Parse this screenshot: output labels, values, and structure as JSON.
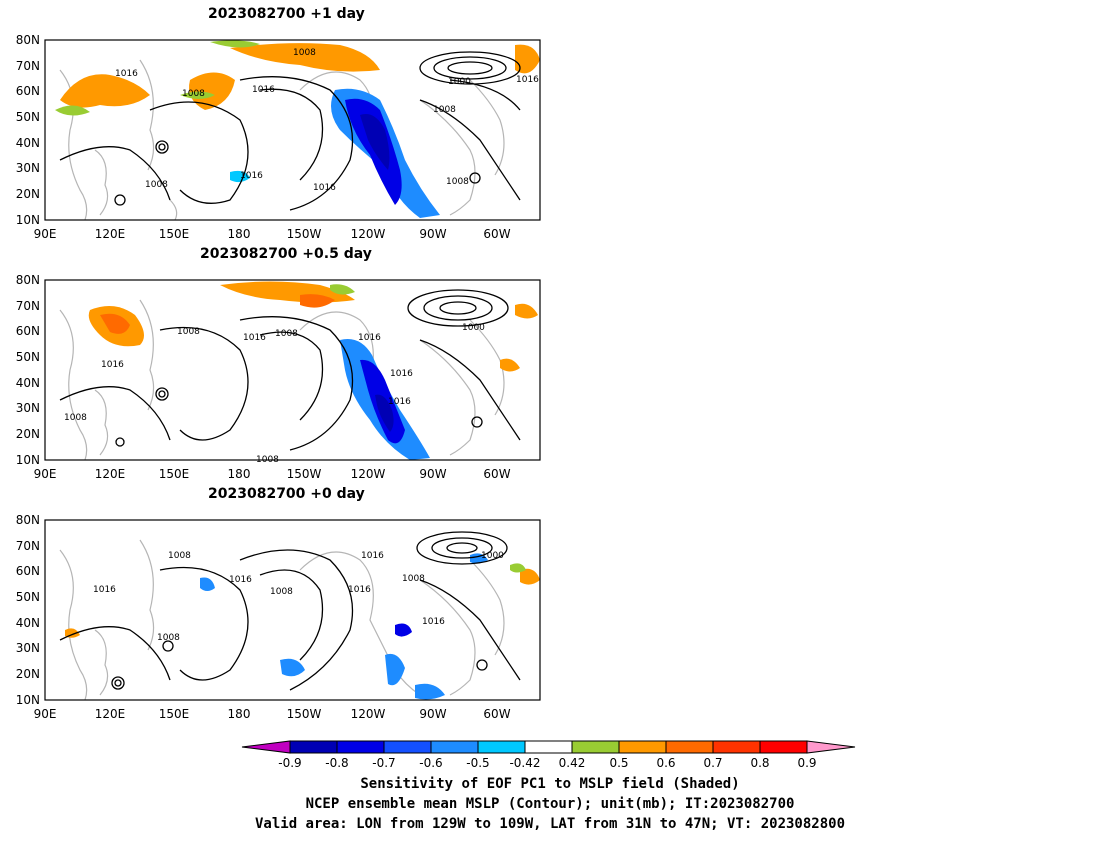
{
  "panels": [
    {
      "title": "2023082700  +1 day",
      "contour_labels": [
        "1008",
        "1016",
        "1008",
        "1016",
        "1000",
        "1016",
        "1008",
        "1016",
        "1016",
        "1008",
        "1008"
      ]
    },
    {
      "title": "2023082700  +0.5 day",
      "contour_labels": [
        "1008",
        "1016",
        "1008",
        "1016",
        "1016",
        "1000",
        "1016",
        "1016",
        "1008",
        "1008"
      ]
    },
    {
      "title": "2023082700  +0 day",
      "contour_labels": [
        "1008",
        "1016",
        "1016",
        "1008",
        "1016",
        "1000",
        "1008",
        "1016",
        "1016",
        "1008"
      ]
    }
  ],
  "map": {
    "lat_ticks": [
      "80N",
      "70N",
      "60N",
      "50N",
      "40N",
      "30N",
      "20N",
      "10N"
    ],
    "lon_ticks": [
      "90E",
      "120E",
      "150E",
      "180",
      "150W",
      "120W",
      "90W",
      "60W"
    ]
  },
  "colorbar": {
    "labels": [
      "-0.9",
      "-0.8",
      "-0.7",
      "-0.6",
      "-0.5",
      "-0.42",
      "0.42",
      "0.5",
      "0.6",
      "0.7",
      "0.8",
      "0.9"
    ],
    "colors": [
      "#c000c0",
      "#0000b4",
      "#0000e6",
      "#1450ff",
      "#1e8cff",
      "#00c8ff",
      "#ffffff",
      "#99cc33",
      "#ff9900",
      "#ff6a00",
      "#ff3300",
      "#ff0000",
      "#ff99cc"
    ]
  },
  "captions": [
    "Sensitivity of EOF PC1 to MSLP field (Shaded)",
    "NCEP ensemble mean MSLP (Contour); unit(mb); IT:2023082700",
    "Valid area: LON from 129W to 109W, LAT from 31N to 47N; VT: 2023082800"
  ]
}
